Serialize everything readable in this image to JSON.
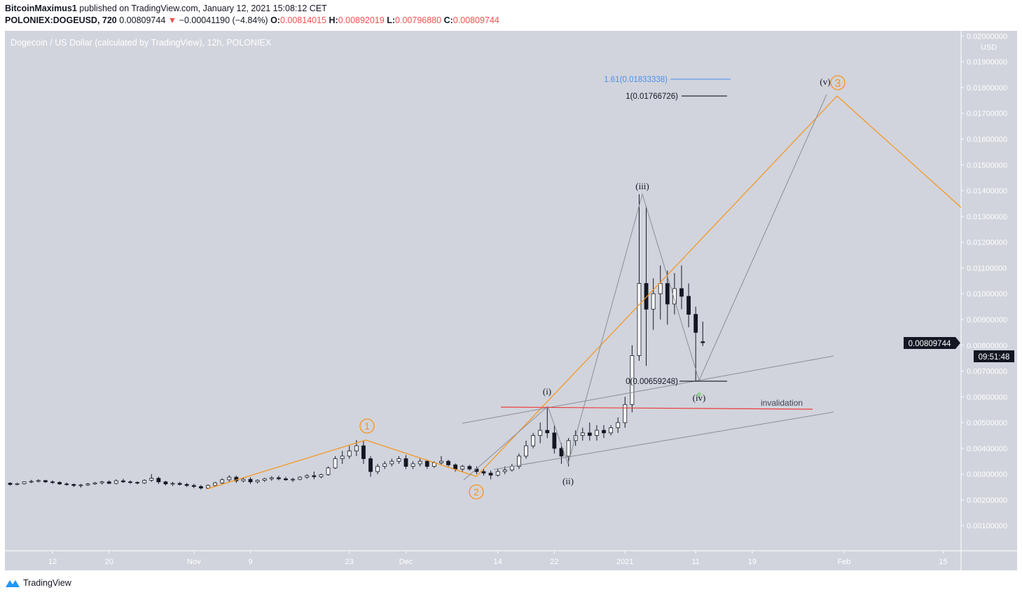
{
  "header": {
    "author": "BitcoinMaximus1",
    "published": "published on TradingView.com, January 12, 2021 15:08:12 CET",
    "symbol": "POLONIEX:DOGEUSD, 720",
    "last": "0.00809744",
    "change": "−0.00041190 (−4.84%)",
    "o_label": "O:",
    "o": "0.00814015",
    "h_label": "H:",
    "h": "0.00892019",
    "l_label": "L:",
    "l": "0.00796880",
    "c_label": "C:",
    "c": "0.00809744"
  },
  "footer": {
    "brand": "TradingView"
  },
  "colors": {
    "background": "#d1d4dc",
    "wave_primary": "#f7931a",
    "invalidation": "#ef3b3b",
    "fib_extension": "#4a8ff0",
    "candle": "#131722"
  },
  "chart_data": {
    "type": "candlestick",
    "title": "Dogecoin / US Dollar (calculated by TradingView), 12h, POLONIEX",
    "currency": "USD",
    "ylim": [
      0,
      0.02
    ],
    "y_ticks": [
      "0.00100000",
      "0.00200000",
      "0.00300000",
      "0.00400000",
      "0.00500000",
      "0.00600000",
      "0.00700000",
      "0.00800000",
      "0.00900000",
      "0.01000000",
      "0.01100000",
      "0.01200000",
      "0.01300000",
      "0.01400000",
      "0.01500000",
      "0.01600000",
      "0.01700000",
      "0.01800000",
      "0.01900000",
      "0.02000000"
    ],
    "x_ticks": [
      {
        "label": "12",
        "date": "2020-10-12"
      },
      {
        "label": "20",
        "date": "2020-10-20"
      },
      {
        "label": "Nov",
        "date": "2020-11-01"
      },
      {
        "label": "9",
        "date": "2020-11-09"
      },
      {
        "label": "23",
        "date": "2020-11-23"
      },
      {
        "label": "Dec",
        "date": "2020-12-01"
      },
      {
        "label": "14",
        "date": "2020-12-14"
      },
      {
        "label": "22",
        "date": "2020-12-22"
      },
      {
        "label": "2021",
        "date": "2021-01-01"
      },
      {
        "label": "11",
        "date": "2021-01-11"
      },
      {
        "label": "19",
        "date": "2021-01-19"
      },
      {
        "label": "Feb",
        "date": "2021-02-01"
      },
      {
        "label": "15",
        "date": "2021-02-15"
      }
    ],
    "last_price_label": "0.00809744",
    "countdown": "09:51:48",
    "price_scale": 0.001,
    "candles": [
      [
        "2020-10-05",
        2.62,
        2.7,
        2.58,
        2.65
      ],
      [
        "2020-10-06",
        2.65,
        2.68,
        2.55,
        2.6
      ],
      [
        "2020-10-07",
        2.6,
        2.67,
        2.57,
        2.63
      ],
      [
        "2020-10-08",
        2.63,
        2.72,
        2.6,
        2.7
      ],
      [
        "2020-10-09",
        2.7,
        2.78,
        2.65,
        2.72
      ],
      [
        "2020-10-10",
        2.72,
        2.8,
        2.68,
        2.75
      ],
      [
        "2020-10-11",
        2.75,
        2.78,
        2.66,
        2.7
      ],
      [
        "2020-10-12",
        2.7,
        2.76,
        2.62,
        2.68
      ],
      [
        "2020-10-13",
        2.68,
        2.72,
        2.58,
        2.62
      ],
      [
        "2020-10-14",
        2.62,
        2.68,
        2.55,
        2.6
      ],
      [
        "2020-10-15",
        2.6,
        2.64,
        2.5,
        2.56
      ],
      [
        "2020-10-16",
        2.56,
        2.62,
        2.48,
        2.58
      ],
      [
        "2020-10-17",
        2.58,
        2.66,
        2.54,
        2.62
      ],
      [
        "2020-10-18",
        2.62,
        2.7,
        2.58,
        2.66
      ],
      [
        "2020-10-19",
        2.66,
        2.74,
        2.6,
        2.7
      ],
      [
        "2020-10-20",
        2.7,
        2.76,
        2.62,
        2.64
      ],
      [
        "2020-10-21",
        2.64,
        2.8,
        2.6,
        2.74
      ],
      [
        "2020-10-22",
        2.74,
        2.82,
        2.66,
        2.7
      ],
      [
        "2020-10-23",
        2.7,
        2.76,
        2.62,
        2.68
      ],
      [
        "2020-10-24",
        2.68,
        2.72,
        2.6,
        2.66
      ],
      [
        "2020-10-25",
        2.66,
        2.8,
        2.62,
        2.76
      ],
      [
        "2020-10-26",
        2.76,
        3.0,
        2.7,
        2.84
      ],
      [
        "2020-10-27",
        2.84,
        2.9,
        2.62,
        2.7
      ],
      [
        "2020-10-28",
        2.7,
        2.74,
        2.56,
        2.62
      ],
      [
        "2020-10-29",
        2.62,
        2.7,
        2.54,
        2.64
      ],
      [
        "2020-10-30",
        2.64,
        2.7,
        2.56,
        2.6
      ],
      [
        "2020-10-31",
        2.6,
        2.66,
        2.5,
        2.56
      ],
      [
        "2020-11-01",
        2.56,
        2.62,
        2.46,
        2.52
      ],
      [
        "2020-11-02",
        2.52,
        2.58,
        2.4,
        2.46
      ],
      [
        "2020-11-03",
        2.46,
        2.6,
        2.42,
        2.56
      ],
      [
        "2020-11-04",
        2.56,
        2.7,
        2.5,
        2.66
      ],
      [
        "2020-11-05",
        2.66,
        2.84,
        2.6,
        2.78
      ],
      [
        "2020-11-06",
        2.78,
        2.96,
        2.7,
        2.88
      ],
      [
        "2020-11-07",
        2.88,
        2.94,
        2.66,
        2.74
      ],
      [
        "2020-11-08",
        2.74,
        2.86,
        2.68,
        2.8
      ],
      [
        "2020-11-09",
        2.8,
        2.88,
        2.62,
        2.7
      ],
      [
        "2020-11-10",
        2.7,
        2.8,
        2.64,
        2.76
      ],
      [
        "2020-11-11",
        2.76,
        2.86,
        2.7,
        2.82
      ],
      [
        "2020-11-12",
        2.82,
        2.92,
        2.74,
        2.86
      ],
      [
        "2020-11-13",
        2.86,
        2.94,
        2.76,
        2.82
      ],
      [
        "2020-11-14",
        2.82,
        2.9,
        2.74,
        2.78
      ],
      [
        "2020-11-15",
        2.78,
        2.86,
        2.7,
        2.8
      ],
      [
        "2020-11-16",
        2.8,
        2.92,
        2.76,
        2.88
      ],
      [
        "2020-11-17",
        2.88,
        3.0,
        2.82,
        2.94
      ],
      [
        "2020-11-18",
        2.94,
        3.1,
        2.8,
        2.9
      ],
      [
        "2020-11-19",
        2.9,
        3.02,
        2.84,
        2.98
      ],
      [
        "2020-11-20",
        2.98,
        3.3,
        2.94,
        3.24
      ],
      [
        "2020-11-21",
        3.24,
        3.7,
        3.2,
        3.6
      ],
      [
        "2020-11-22",
        3.6,
        3.9,
        3.4,
        3.7
      ],
      [
        "2020-11-23",
        3.7,
        4.1,
        3.6,
        3.9
      ],
      [
        "2020-11-24",
        3.9,
        4.32,
        3.7,
        4.1
      ],
      [
        "2020-11-25",
        4.1,
        4.3,
        3.4,
        3.6
      ],
      [
        "2020-11-26",
        3.6,
        3.7,
        2.9,
        3.1
      ],
      [
        "2020-11-27",
        3.1,
        3.4,
        3.0,
        3.3
      ],
      [
        "2020-11-28",
        3.3,
        3.5,
        3.2,
        3.4
      ],
      [
        "2020-11-29",
        3.4,
        3.6,
        3.3,
        3.5
      ],
      [
        "2020-11-30",
        3.5,
        3.7,
        3.4,
        3.6
      ],
      [
        "2020-12-01",
        3.6,
        3.74,
        3.2,
        3.3
      ],
      [
        "2020-12-02",
        3.3,
        3.5,
        3.2,
        3.4
      ],
      [
        "2020-12-03",
        3.4,
        3.6,
        3.3,
        3.5
      ],
      [
        "2020-12-04",
        3.5,
        3.56,
        3.2,
        3.3
      ],
      [
        "2020-12-05",
        3.3,
        3.5,
        3.24,
        3.44
      ],
      [
        "2020-12-06",
        3.44,
        3.7,
        3.36,
        3.5
      ],
      [
        "2020-12-07",
        3.5,
        3.56,
        3.3,
        3.36
      ],
      [
        "2020-12-08",
        3.36,
        3.42,
        3.1,
        3.2
      ],
      [
        "2020-12-09",
        3.2,
        3.36,
        3.1,
        3.3
      ],
      [
        "2020-12-10",
        3.3,
        3.36,
        3.14,
        3.2
      ],
      [
        "2020-12-11",
        3.2,
        3.3,
        3.0,
        3.1
      ],
      [
        "2020-12-12",
        3.1,
        3.2,
        2.94,
        3.04
      ],
      [
        "2020-12-13",
        3.04,
        3.14,
        2.8,
        2.96
      ],
      [
        "2020-12-14",
        2.96,
        3.2,
        2.9,
        3.1
      ],
      [
        "2020-12-15",
        3.1,
        3.3,
        3.0,
        3.16
      ],
      [
        "2020-12-16",
        3.16,
        3.4,
        3.1,
        3.3
      ],
      [
        "2020-12-17",
        3.3,
        3.8,
        3.2,
        3.7
      ],
      [
        "2020-12-18",
        3.7,
        4.3,
        3.6,
        4.1
      ],
      [
        "2020-12-19",
        4.1,
        4.6,
        4.0,
        4.5
      ],
      [
        "2020-12-20",
        4.5,
        5.0,
        4.2,
        4.7
      ],
      [
        "2020-12-21",
        4.7,
        5.62,
        4.4,
        4.6
      ],
      [
        "2020-12-22",
        4.6,
        4.9,
        3.8,
        4.0
      ],
      [
        "2020-12-23",
        4.0,
        4.2,
        3.4,
        3.7
      ],
      [
        "2020-12-24",
        3.7,
        4.4,
        3.3,
        4.3
      ],
      [
        "2020-12-25",
        4.3,
        4.7,
        4.1,
        4.5
      ],
      [
        "2020-12-26",
        4.5,
        4.8,
        4.3,
        4.6
      ],
      [
        "2020-12-27",
        4.6,
        5.0,
        4.3,
        4.5
      ],
      [
        "2020-12-28",
        4.5,
        4.9,
        4.3,
        4.7
      ],
      [
        "2020-12-29",
        4.7,
        4.9,
        4.4,
        4.6
      ],
      [
        "2020-12-30",
        4.6,
        4.9,
        4.5,
        4.8
      ],
      [
        "2020-12-31",
        4.8,
        5.2,
        4.6,
        5.0
      ],
      [
        "2021-01-01",
        5.0,
        6.0,
        4.8,
        5.7
      ],
      [
        "2021-01-02",
        5.7,
        8.0,
        5.4,
        7.6
      ],
      [
        "2021-01-03",
        7.6,
        13.86,
        7.4,
        10.4
      ],
      [
        "2021-01-04",
        10.4,
        13.4,
        7.2,
        9.4
      ],
      [
        "2021-01-05",
        9.4,
        10.6,
        8.6,
        10.0
      ],
      [
        "2021-01-06",
        10.0,
        11.1,
        9.0,
        10.4
      ],
      [
        "2021-01-07",
        10.4,
        10.9,
        8.8,
        9.6
      ],
      [
        "2021-01-08",
        9.6,
        10.8,
        9.2,
        10.2
      ],
      [
        "2021-01-09",
        10.2,
        11.1,
        9.4,
        9.9
      ],
      [
        "2021-01-10",
        9.9,
        10.4,
        8.7,
        9.2
      ],
      [
        "2021-01-11",
        9.2,
        9.5,
        6.59,
        8.5
      ],
      [
        "2021-01-12",
        8.14,
        8.92,
        7.97,
        8.1
      ]
    ],
    "annotations": {
      "wave_labels": {
        "w1": "1",
        "w2": "2",
        "w3": "3",
        "i": "(i)",
        "ii": "(ii)",
        "iii": "(iii)",
        "iv": "(iv)",
        "v": "(v)"
      },
      "fib_levels": [
        "1.61(0.01833338)",
        "1(0.01766726)",
        "0(0.00659248)"
      ],
      "invalidation": "invalidation"
    }
  }
}
